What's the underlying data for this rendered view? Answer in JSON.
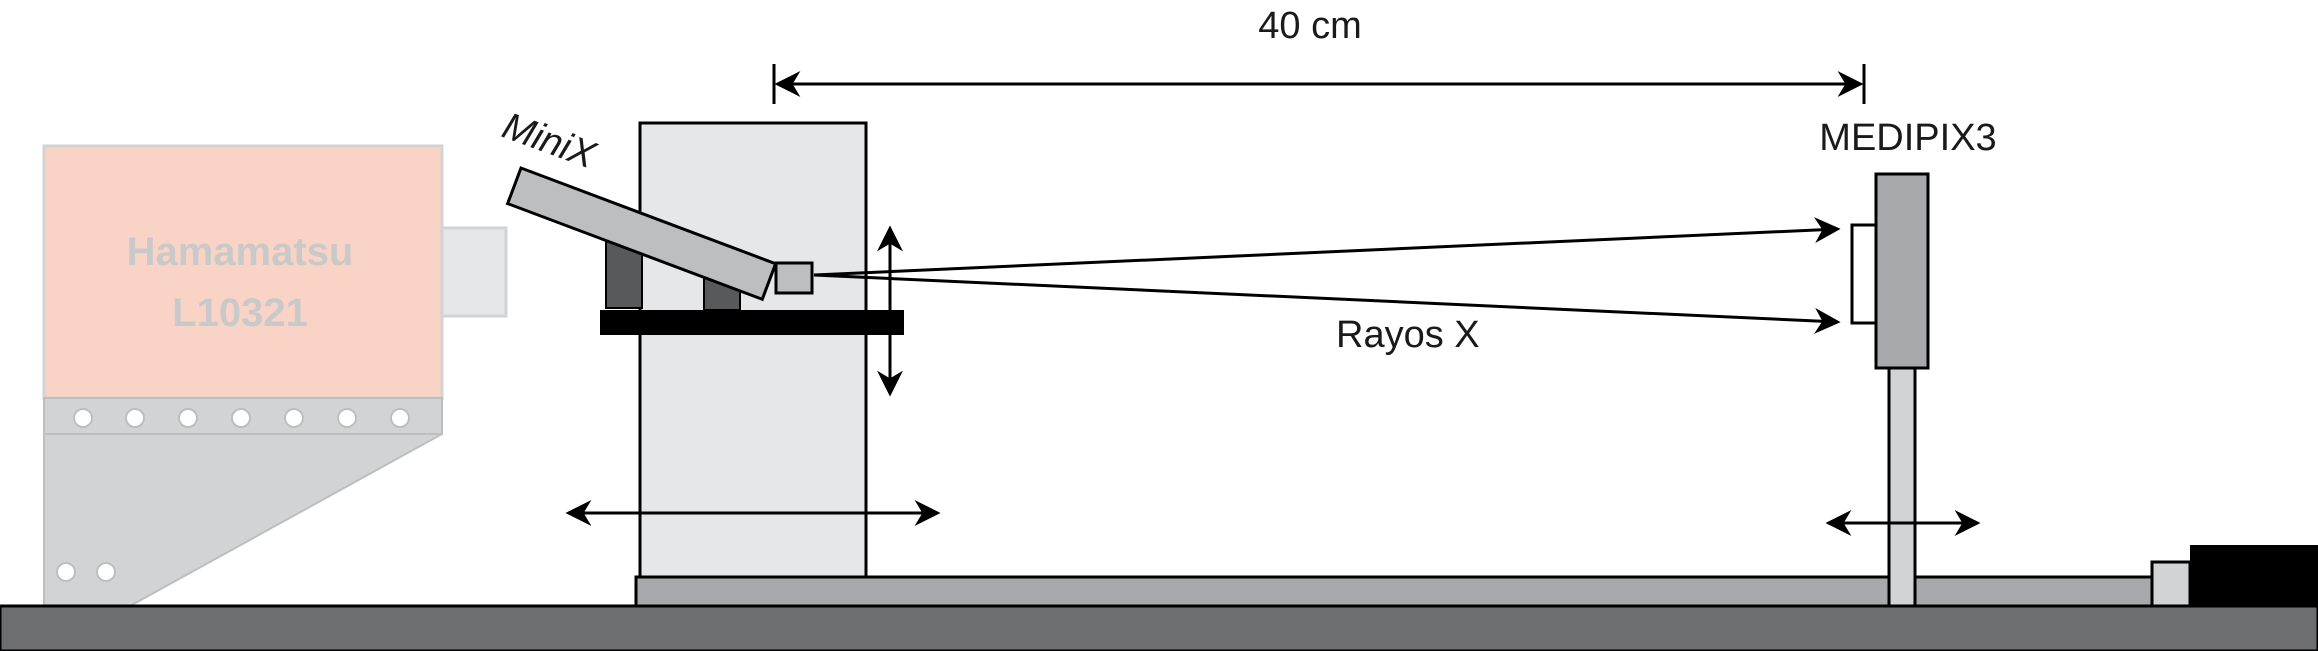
{
  "distance_label": "40 cm",
  "source_label": "MiniX",
  "detector_label": "MEDIPIX3",
  "beam_label": "Rayos X",
  "background_source": {
    "line1": "Hamamatsu",
    "line2": "L10321"
  },
  "colors": {
    "table_base": "#6d6e70",
    "rail": "#a7a9ac",
    "tower": "#e6e7e8",
    "minix_body": "#bcbec0",
    "support_dark": "#58595b",
    "platform": "#000000",
    "detector": "#a7a9ac",
    "hamamatsu_body": "#f9d3c6",
    "hamamatsu_frame": "#d1d3d4"
  }
}
